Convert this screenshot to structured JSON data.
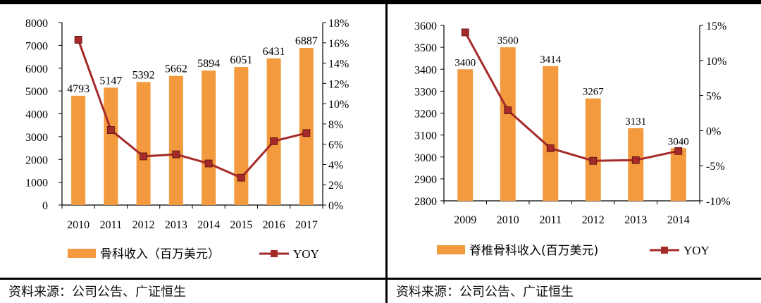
{
  "source_left": "资料来源：公司公告、广证恒生",
  "source_right": "资料来源：公司公告、广证恒生",
  "chart_data": [
    {
      "type": "bar+line",
      "categories": [
        "2010",
        "2011",
        "2012",
        "2013",
        "2014",
        "2015",
        "2016",
        "2017"
      ],
      "series": [
        {
          "name": "骨科收入（百万美元）",
          "type": "bar",
          "axis": "left",
          "values": [
            4793,
            5147,
            5392,
            5662,
            5894,
            6051,
            6431,
            6887
          ]
        },
        {
          "name": "YOY",
          "type": "line",
          "axis": "right",
          "values": [
            16.3,
            7.4,
            4.8,
            5.0,
            4.1,
            2.7,
            6.3,
            7.1
          ]
        }
      ],
      "left_axis": {
        "min": 0,
        "max": 8000,
        "step": 1000
      },
      "right_axis": {
        "min": 0,
        "max": 18,
        "step": 2,
        "format": "percent_int"
      },
      "legend_position": "bottom"
    },
    {
      "type": "bar+line",
      "categories": [
        "2009",
        "2010",
        "2011",
        "2012",
        "2013",
        "2014"
      ],
      "series": [
        {
          "name": "脊椎骨科收入(百万美元)",
          "type": "bar",
          "axis": "left",
          "values": [
            3400,
            3500,
            3414,
            3267,
            3131,
            3040
          ]
        },
        {
          "name": "YOY",
          "type": "line",
          "axis": "right",
          "values": [
            14.0,
            2.9,
            -2.5,
            -4.3,
            -4.2,
            -2.9
          ]
        }
      ],
      "left_axis": {
        "min": 2800,
        "max": 3600,
        "step": 100
      },
      "right_axis": {
        "min": -10,
        "max": 15,
        "step": 5,
        "format": "percent_int"
      },
      "legend_position": "bottom"
    }
  ],
  "colors": {
    "bar": "#f29a3d",
    "line": "#a52a2a",
    "marker": "#a52a2a"
  }
}
